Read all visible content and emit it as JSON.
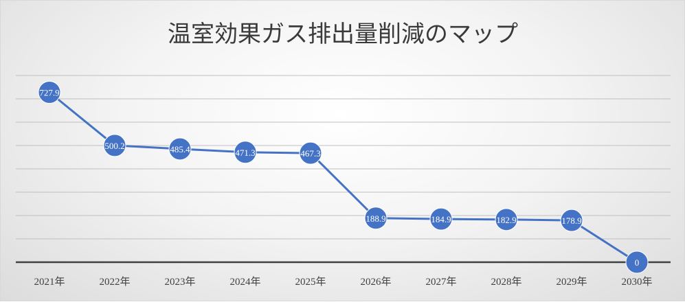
{
  "chart_data": {
    "type": "line",
    "title": "温室効果ガス排出量削減のマップ",
    "xlabel": "",
    "ylabel": "",
    "categories": [
      "2021年",
      "2022年",
      "2023年",
      "2024年",
      "2025年",
      "2026年",
      "2027年",
      "2028年",
      "2029年",
      "2030年"
    ],
    "series": [
      {
        "values": [
          727.9,
          500.2,
          485.4,
          471.3,
          467.3,
          188.9,
          184.9,
          182.9,
          178.9,
          0
        ]
      }
    ],
    "data_labels": [
      "727.9",
      "500.2",
      "485.4",
      "471.3",
      "467.3",
      "188.9",
      "184.9",
      "182.9",
      "178.9",
      "0"
    ],
    "ylim": [
      0,
      800
    ],
    "y_tick_step": 100,
    "y_tick_labels_visible": false,
    "grid": true,
    "legend": "none",
    "colors": {
      "line": "#4472c4",
      "marker": "#4472c4",
      "gridline": "#bfbfbf",
      "axis": "#404040"
    }
  }
}
